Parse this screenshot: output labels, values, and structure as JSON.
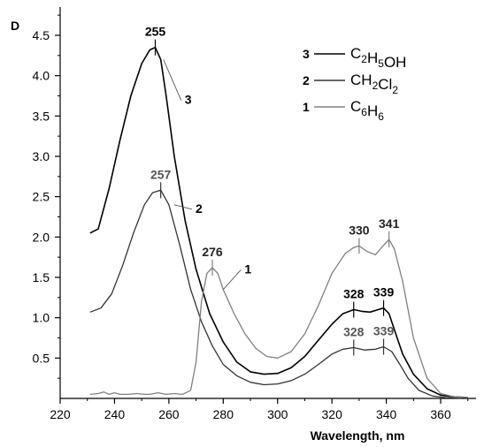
{
  "chart_data": {
    "type": "line",
    "ylabel": "D",
    "xlabel": "Wavelength, nm",
    "xlim": [
      220,
      373
    ],
    "ylim": [
      0,
      4.85
    ],
    "x_ticks": [
      220,
      240,
      260,
      280,
      300,
      320,
      340,
      360
    ],
    "y_ticks": [
      0.5,
      1.0,
      1.5,
      2.0,
      2.5,
      3.0,
      3.5,
      4.0,
      4.5
    ],
    "x_tick_labels": [
      "220",
      "240",
      "260",
      "280",
      "300",
      "320",
      "340",
      "360"
    ],
    "y_tick_labels": [
      "0.5",
      "1.0",
      "1.5",
      "2.0",
      "2.5",
      "3.0",
      "3.5",
      "4.0",
      "4.5"
    ],
    "grid": false,
    "legend_position": "top-right",
    "series": [
      {
        "id": "3",
        "name": "C2H5OH",
        "color": "#000000",
        "x": [
          231,
          234,
          238,
          242,
          246,
          250,
          253,
          255,
          257,
          259,
          262,
          266,
          270,
          275,
          280,
          285,
          290,
          295,
          300,
          305,
          310,
          315,
          320,
          324,
          328,
          331,
          334,
          337,
          339,
          341,
          343,
          346,
          350,
          355,
          360,
          365,
          370
        ],
        "y": [
          2.05,
          2.1,
          2.6,
          3.2,
          3.75,
          4.15,
          4.32,
          4.35,
          4.2,
          3.75,
          3.0,
          2.2,
          1.6,
          1.05,
          0.7,
          0.45,
          0.33,
          0.3,
          0.31,
          0.38,
          0.52,
          0.72,
          0.92,
          1.05,
          1.1,
          1.08,
          1.07,
          1.1,
          1.12,
          1.05,
          0.85,
          0.55,
          0.3,
          0.12,
          0.04,
          0.02,
          0.01
        ]
      },
      {
        "id": "2",
        "name": "CH2Cl2",
        "color": "#333333",
        "x": [
          231,
          235,
          239,
          243,
          247,
          251,
          254,
          257,
          260,
          264,
          268,
          272,
          276,
          280,
          285,
          290,
          295,
          300,
          305,
          310,
          315,
          320,
          324,
          328,
          332,
          336,
          339,
          342,
          345,
          348,
          352,
          357,
          362,
          368
        ],
        "y": [
          1.07,
          1.12,
          1.3,
          1.65,
          2.05,
          2.4,
          2.55,
          2.58,
          2.4,
          1.9,
          1.35,
          0.95,
          0.65,
          0.42,
          0.28,
          0.2,
          0.17,
          0.18,
          0.22,
          0.3,
          0.42,
          0.55,
          0.61,
          0.63,
          0.6,
          0.61,
          0.64,
          0.58,
          0.42,
          0.25,
          0.1,
          0.03,
          0.01,
          0.0
        ]
      },
      {
        "id": "1",
        "name": "C6H6",
        "color": "#808080",
        "x": [
          231,
          234,
          236,
          238,
          240,
          242,
          245,
          248,
          251,
          253,
          256,
          259,
          262,
          265,
          268,
          270,
          272,
          274,
          276,
          278,
          280,
          284,
          288,
          292,
          296,
          300,
          305,
          310,
          315,
          320,
          325,
          328,
          330,
          333,
          336,
          339,
          341,
          343,
          346,
          350,
          355,
          360,
          365,
          370
        ],
        "y": [
          0.05,
          0.06,
          0.08,
          0.05,
          0.07,
          0.05,
          0.05,
          0.06,
          0.05,
          0.05,
          0.07,
          0.05,
          0.06,
          0.05,
          0.1,
          0.45,
          1.2,
          1.55,
          1.62,
          1.55,
          1.35,
          1.05,
          0.8,
          0.62,
          0.52,
          0.5,
          0.58,
          0.8,
          1.15,
          1.55,
          1.8,
          1.87,
          1.89,
          1.82,
          1.78,
          1.9,
          1.97,
          1.85,
          1.45,
          0.75,
          0.25,
          0.06,
          0.02,
          0.01
        ]
      }
    ],
    "peak_annotations": [
      {
        "text": "255",
        "x": 255,
        "y": 4.35,
        "series": "3"
      },
      {
        "text": "257",
        "x": 257,
        "y": 2.58,
        "series": "2"
      },
      {
        "text": "276",
        "x": 276,
        "y": 1.62,
        "series": "1"
      },
      {
        "text": "330",
        "x": 330,
        "y": 1.89,
        "series": "1"
      },
      {
        "text": "341",
        "x": 341,
        "y": 1.97,
        "series": "1"
      },
      {
        "text": "328",
        "x": 328,
        "y": 1.1,
        "series": "3"
      },
      {
        "text": "339",
        "x": 339,
        "y": 1.12,
        "series": "3"
      },
      {
        "text": "328",
        "x": 328,
        "y": 0.63,
        "series": "2"
      },
      {
        "text": "339",
        "x": 339,
        "y": 0.64,
        "series": "2"
      }
    ],
    "curve_labels": [
      {
        "text": "3",
        "x": 258,
        "y": 3.65
      },
      {
        "text": "2",
        "x": 262,
        "y": 2.3
      },
      {
        "text": "1",
        "x": 280,
        "y": 1.55
      }
    ],
    "legend": [
      {
        "num": "3",
        "formula": "C2H5OH",
        "color": "#000000"
      },
      {
        "num": "2",
        "formula": "CH2Cl2",
        "color": "#333333"
      },
      {
        "num": "1",
        "formula": "C6H6",
        "color": "#808080"
      }
    ]
  }
}
